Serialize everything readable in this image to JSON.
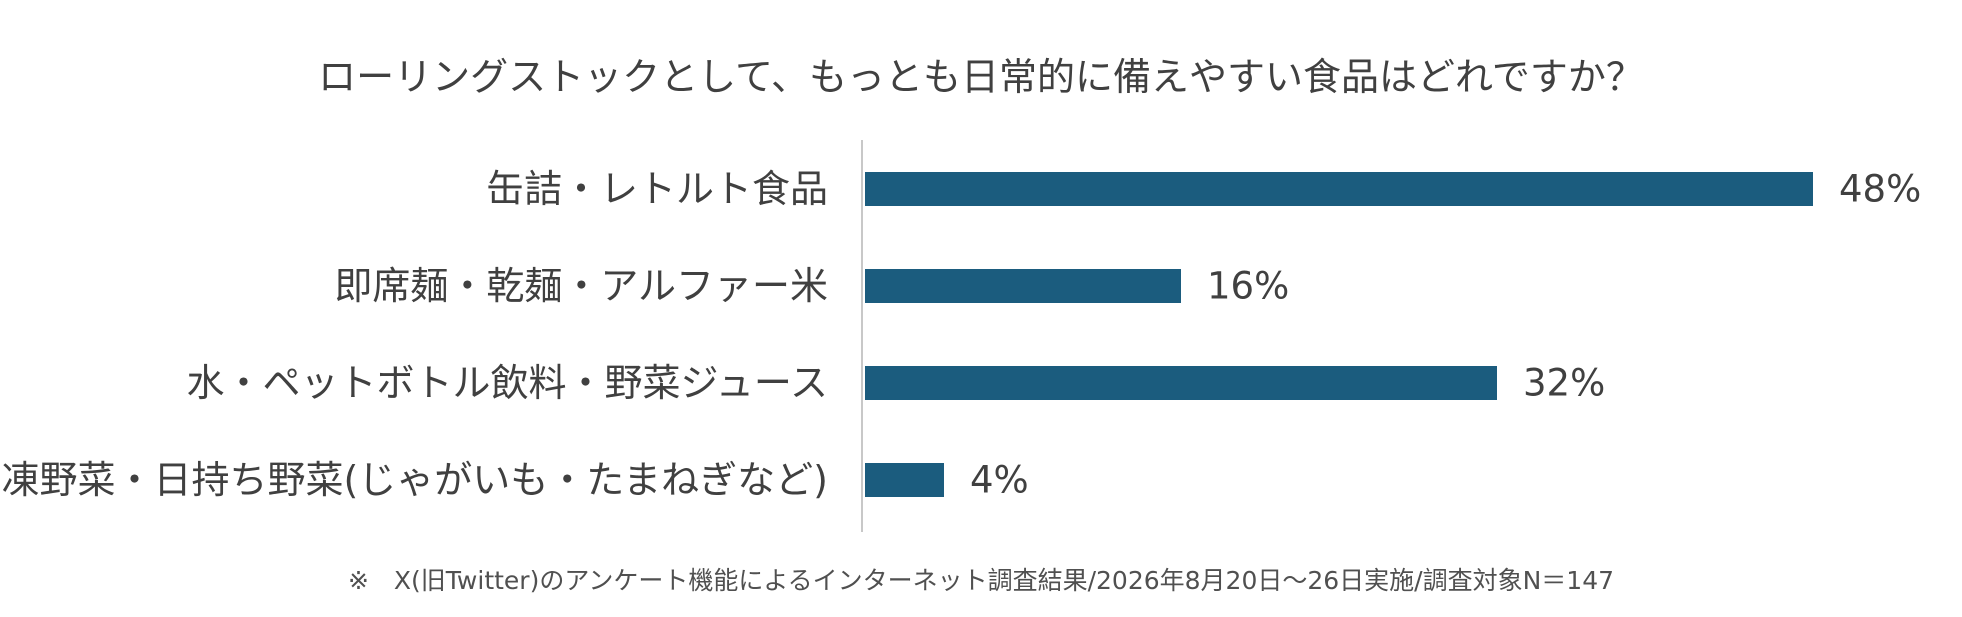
{
  "chart_data": {
    "type": "bar",
    "orientation": "horizontal",
    "title": "ローリングストックとして、もっとも日常的に備えやすい食品はどれですか？",
    "categories": [
      "缶詰・レトルト食品",
      "即席麺・乾麺・アルファー米",
      "水・ペットボトル飲料・野菜ジュース",
      "冷凍野菜・日持ち野菜(じゃがいも・たまねぎなど)"
    ],
    "values": [
      48,
      16,
      32,
      4
    ],
    "value_labels": [
      "48%",
      "16%",
      "32%",
      "4%"
    ],
    "unit": "%",
    "xlim": [
      0,
      50
    ],
    "xlabel": "",
    "ylabel": "",
    "grid": false,
    "legend": "none",
    "bar_color": "#1b5c7e",
    "axis_color": "#c8c8c8"
  },
  "footnote": "※　X(旧Twitter)のアンケート機能によるインターネット調査結果/2026年8月20日～26日実施/調査対象N＝147"
}
